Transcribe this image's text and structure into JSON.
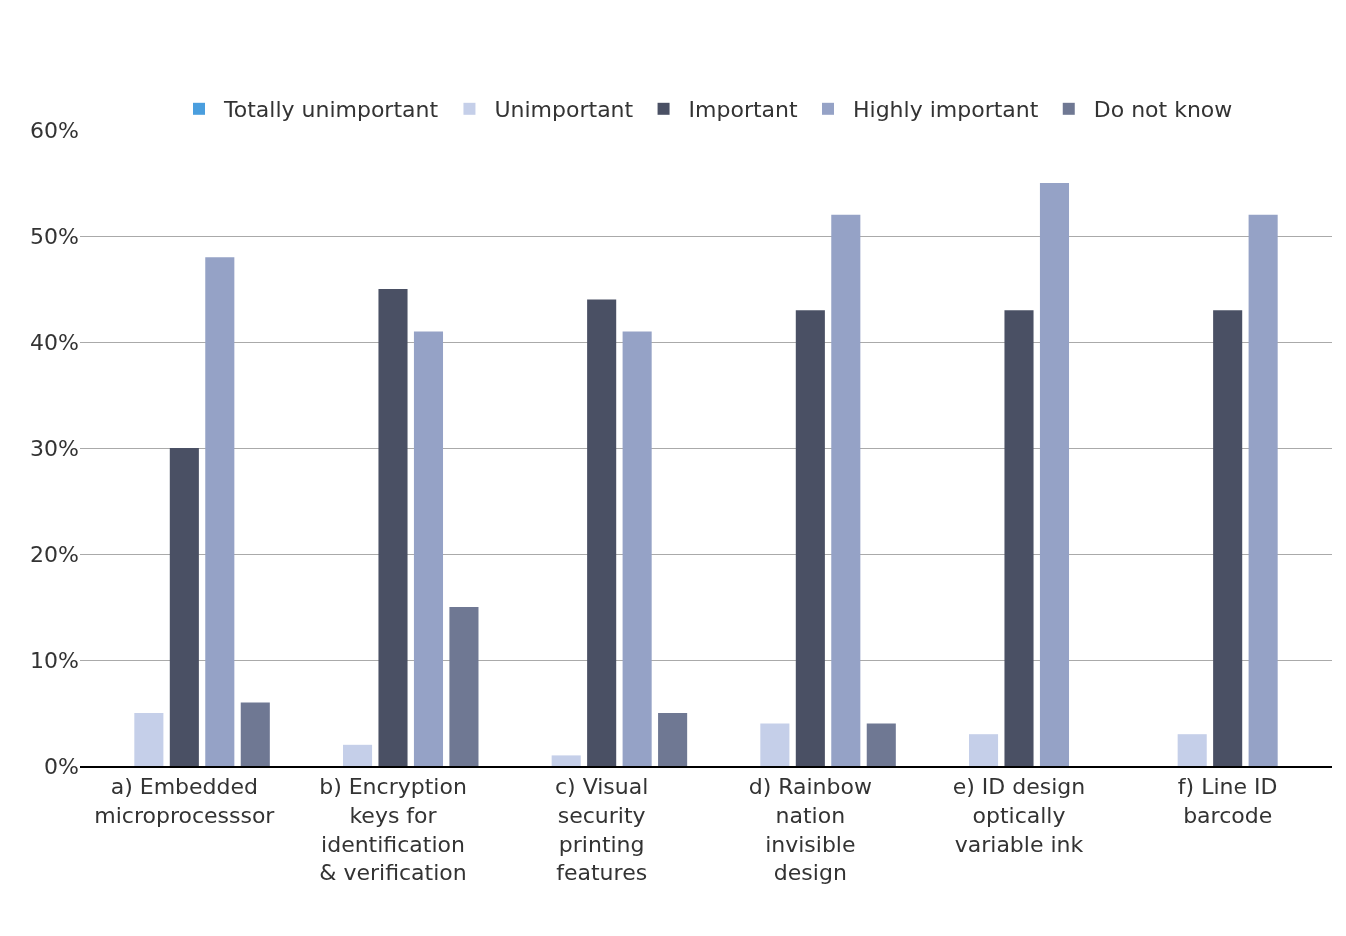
{
  "chart_data": {
    "type": "bar",
    "categories": [
      "a) Embedded\nmicroprocesssor",
      "b) Encryption\nkeys for\nidentification\n& verification",
      "c) Visual\nsecurity\nprinting\nfeatures",
      "d) Rainbow\nnation\ninvisible\ndesign",
      "e) ID design\noptically\nvariable ink",
      "f) Line ID\nbarcode"
    ],
    "series": [
      {
        "name": "Totally unimportant",
        "color": "#4a9ede",
        "values": [
          0,
          0,
          0,
          0,
          0,
          0
        ]
      },
      {
        "name": "Unimportant",
        "color": "#c5cfe9",
        "values": [
          5,
          2,
          1,
          4,
          3,
          3
        ]
      },
      {
        "name": "Important",
        "color": "#4a5064",
        "values": [
          30,
          45,
          44,
          43,
          43,
          43
        ]
      },
      {
        "name": "Highly important",
        "color": "#95a2c6",
        "values": [
          48,
          41,
          41,
          52,
          55,
          52
        ]
      },
      {
        "name": "Do not know",
        "color": "#6f7893",
        "values": [
          6,
          15,
          5,
          4,
          null,
          null
        ]
      }
    ],
    "ylim": [
      0,
      60
    ],
    "yticks": [
      {
        "value": 0,
        "label": "0%"
      },
      {
        "value": 10,
        "label": "10%"
      },
      {
        "value": 20,
        "label": "20%"
      },
      {
        "value": 30,
        "label": "30%"
      },
      {
        "value": 40,
        "label": "40%"
      },
      {
        "value": 50,
        "label": "50%"
      },
      {
        "value": 60,
        "label": "60%"
      }
    ],
    "grid": "y",
    "legend": "top"
  }
}
